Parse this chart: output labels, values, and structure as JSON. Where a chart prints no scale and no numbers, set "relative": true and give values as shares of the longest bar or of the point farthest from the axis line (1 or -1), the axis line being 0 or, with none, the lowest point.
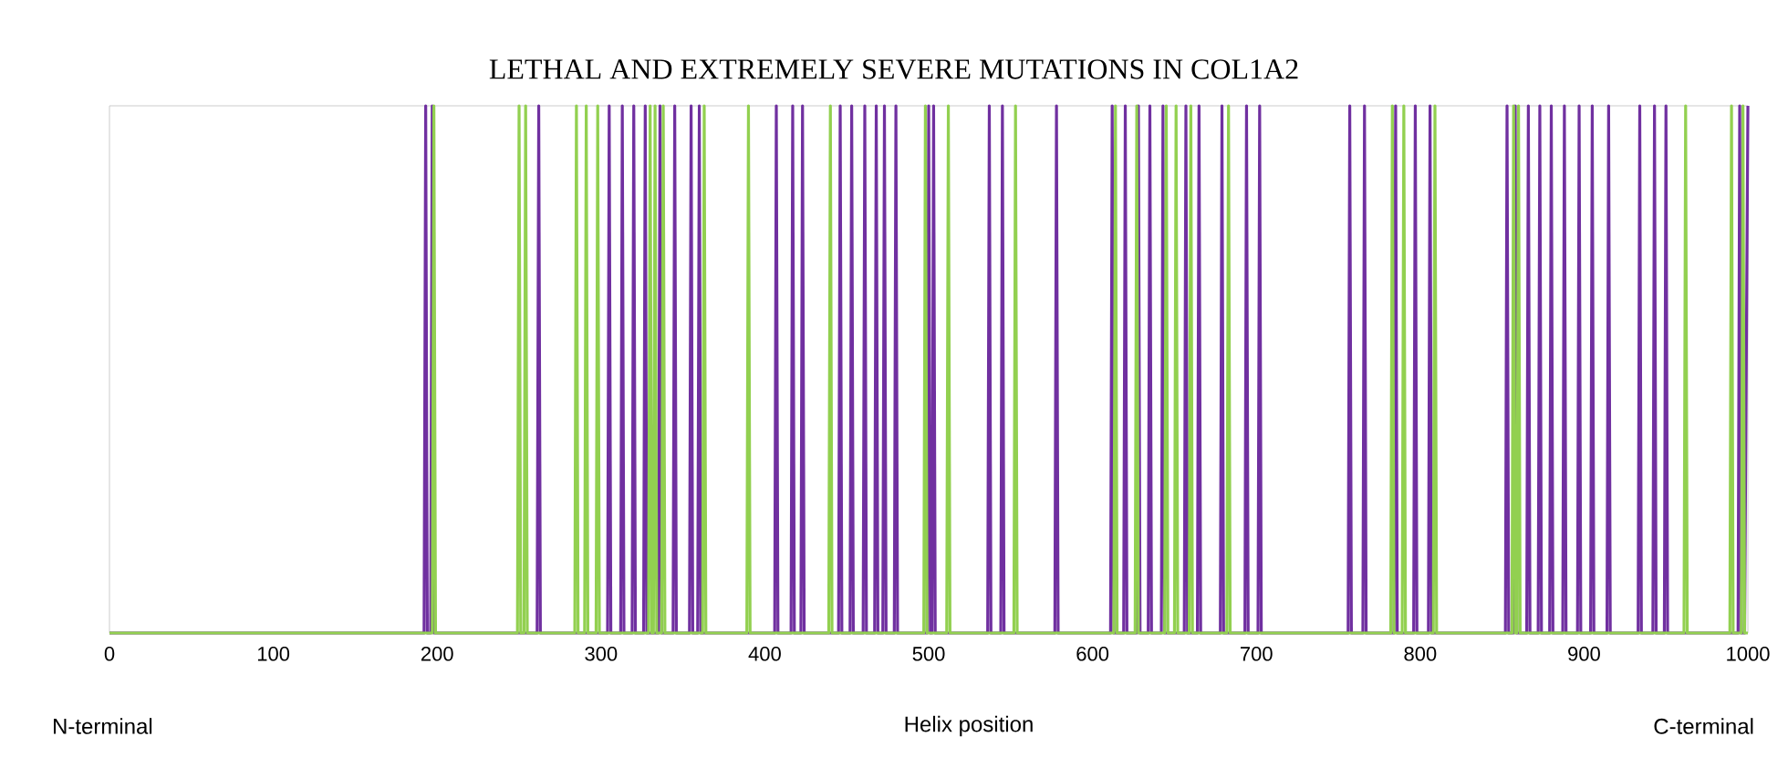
{
  "chart_data": {
    "type": "line",
    "title": "LETHAL AND EXTREMELY SEVERE MUTATIONS IN COL1A2",
    "xlabel": "Helix position",
    "relative": true,
    "annotations": [
      "N-terminal",
      "C-terminal"
    ],
    "xlim": [
      0,
      1000
    ],
    "xticks": [
      0,
      100,
      200,
      300,
      400,
      500,
      600,
      700,
      800,
      900,
      1000
    ],
    "marker": "none",
    "line_style": "solid",
    "series": [
      {
        "color": "#7030a0",
        "x": [
          0,
          192,
          193,
          194,
          196,
          197,
          198,
          261,
          262,
          263,
          304,
          305,
          306,
          312,
          313,
          314,
          319,
          320,
          321,
          326,
          327,
          328,
          335,
          336,
          337,
          344,
          345,
          346,
          354,
          355,
          356,
          359,
          360,
          361,
          406,
          407,
          408,
          416,
          417,
          418,
          422,
          423,
          424,
          445,
          446,
          447,
          452,
          453,
          454,
          460,
          461,
          462,
          467,
          468,
          469,
          472,
          473,
          474,
          479,
          480,
          481,
          499,
          500,
          501,
          502,
          503,
          504,
          536,
          537,
          538,
          544,
          545,
          546,
          577,
          578,
          579,
          611,
          612,
          613,
          619,
          620,
          621,
          627,
          628,
          629,
          634,
          635,
          636,
          642,
          643,
          644,
          656,
          657,
          658,
          664,
          665,
          666,
          678,
          679,
          680,
          693,
          694,
          695,
          701,
          702,
          703,
          756,
          757,
          758,
          765,
          766,
          767,
          784,
          785,
          786,
          796,
          797,
          798,
          805,
          806,
          807,
          852,
          853,
          854,
          857,
          858,
          859,
          865,
          866,
          867,
          872,
          873,
          874,
          879,
          880,
          881,
          887,
          888,
          889,
          896,
          897,
          898,
          904,
          905,
          906,
          914,
          915,
          916,
          933,
          934,
          935,
          942,
          943,
          944,
          949,
          950,
          951,
          994,
          995,
          996,
          998,
          1000
        ],
        "values": [
          0,
          0,
          1,
          0,
          0,
          1,
          0,
          0,
          1,
          0,
          0,
          1,
          0,
          0,
          1,
          0,
          0,
          1,
          0,
          0,
          1,
          0,
          0,
          1,
          0,
          0,
          1,
          0,
          0,
          1,
          0,
          0,
          1,
          0,
          0,
          1,
          0,
          0,
          1,
          0,
          0,
          1,
          0,
          0,
          1,
          0,
          0,
          1,
          0,
          0,
          1,
          0,
          0,
          1,
          0,
          0,
          1,
          0,
          0,
          1,
          0,
          0,
          1,
          0,
          0,
          1,
          0,
          0,
          1,
          0,
          0,
          1,
          0,
          0,
          1,
          0,
          0,
          1,
          0,
          0,
          1,
          0,
          0,
          1,
          0,
          0,
          1,
          0,
          0,
          1,
          0,
          0,
          1,
          0,
          0,
          1,
          0,
          0,
          1,
          0,
          0,
          1,
          0,
          0,
          1,
          0,
          0,
          1,
          0,
          0,
          1,
          0,
          0,
          1,
          0,
          0,
          1,
          0,
          0,
          1,
          0,
          0,
          1,
          0,
          0,
          1,
          0,
          0,
          1,
          0,
          0,
          1,
          0,
          0,
          1,
          0,
          0,
          1,
          0,
          0,
          1,
          0,
          0,
          1,
          0,
          0,
          1,
          0,
          0,
          1,
          0,
          0,
          1,
          0,
          0,
          1,
          0,
          0,
          1,
          0,
          0,
          1
        ]
      },
      {
        "color": "#92d050",
        "x": [
          0,
          197,
          198,
          199,
          249,
          250,
          251,
          253,
          254,
          255,
          284,
          285,
          286,
          290,
          291,
          292,
          297,
          298,
          299,
          329,
          330,
          331,
          332,
          333,
          334,
          337,
          338,
          339,
          362,
          363,
          364,
          389,
          390,
          391,
          439,
          440,
          441,
          497,
          498,
          499,
          511,
          512,
          513,
          552,
          553,
          554,
          613,
          614,
          615,
          626,
          627,
          628,
          644,
          645,
          646,
          650,
          651,
          652,
          659,
          660,
          661,
          682,
          683,
          684,
          782,
          783,
          784,
          789,
          790,
          791,
          808,
          809,
          810,
          856,
          857,
          858,
          859,
          860,
          861,
          961,
          962,
          963,
          989,
          990,
          991,
          996,
          997,
          998,
          1000
        ],
        "values": [
          0,
          0,
          1,
          0,
          0,
          1,
          0,
          0,
          1,
          0,
          0,
          1,
          0,
          0,
          1,
          0,
          0,
          1,
          0,
          0,
          1,
          0,
          0,
          1,
          0,
          0,
          1,
          0,
          0,
          1,
          0,
          0,
          1,
          0,
          0,
          1,
          0,
          0,
          1,
          0,
          0,
          1,
          0,
          0,
          1,
          0,
          0,
          1,
          0,
          0,
          1,
          0,
          0,
          1,
          0,
          0,
          1,
          0,
          0,
          1,
          0,
          0,
          1,
          0,
          0,
          1,
          0,
          0,
          1,
          0,
          0,
          1,
          0,
          0,
          1,
          0,
          0,
          1,
          0,
          0,
          1,
          0,
          0,
          1,
          0,
          0,
          1,
          0,
          0
        ]
      }
    ]
  }
}
